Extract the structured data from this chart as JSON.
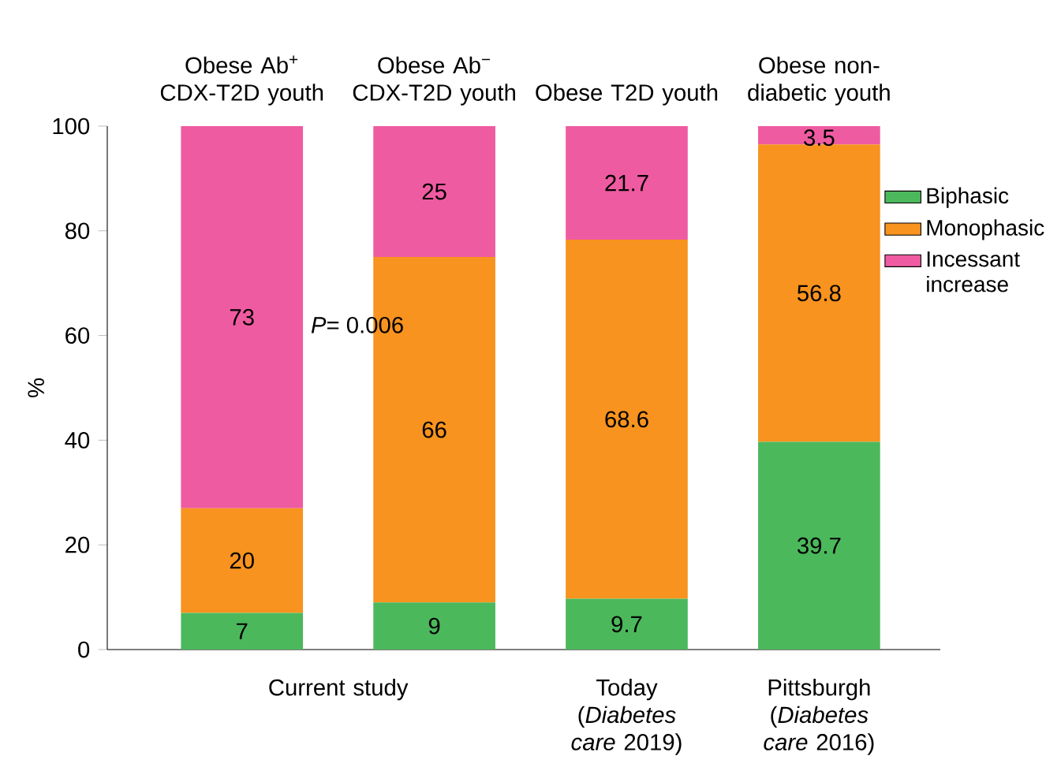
{
  "chart_data": {
    "type": "bar",
    "stacked": true,
    "ylabel": "%",
    "categories": [
      "Obese Ab$^{+}$ CDX-T2D youth",
      "Obese Ab$^{−}$ CDX-T2D youth",
      "Obese T2D youth",
      "Obese non-diabetic youth"
    ],
    "series": [
      {
        "name": "Biphasic",
        "color": "#4cb85c",
        "values": [
          7,
          9,
          9.7,
          39.7
        ]
      },
      {
        "name": "Monophasic",
        "color": "#f7931e",
        "values": [
          20,
          66,
          68.6,
          56.8
        ]
      },
      {
        "name": "Incessant increase",
        "color": "#ef5ba1",
        "values": [
          73,
          25,
          21.7,
          3.5
        ]
      }
    ],
    "ylim": [
      0,
      100
    ],
    "yticks": [
      0,
      20,
      40,
      60,
      80,
      100
    ],
    "data_labels": true,
    "legend": "right",
    "grid": false,
    "annotations": [
      "*P*= 0.006",
      "Current study",
      "Today (*Diabetes care* 2019)",
      "Pittsburgh (*Diabetes care* 2016)"
    ]
  }
}
